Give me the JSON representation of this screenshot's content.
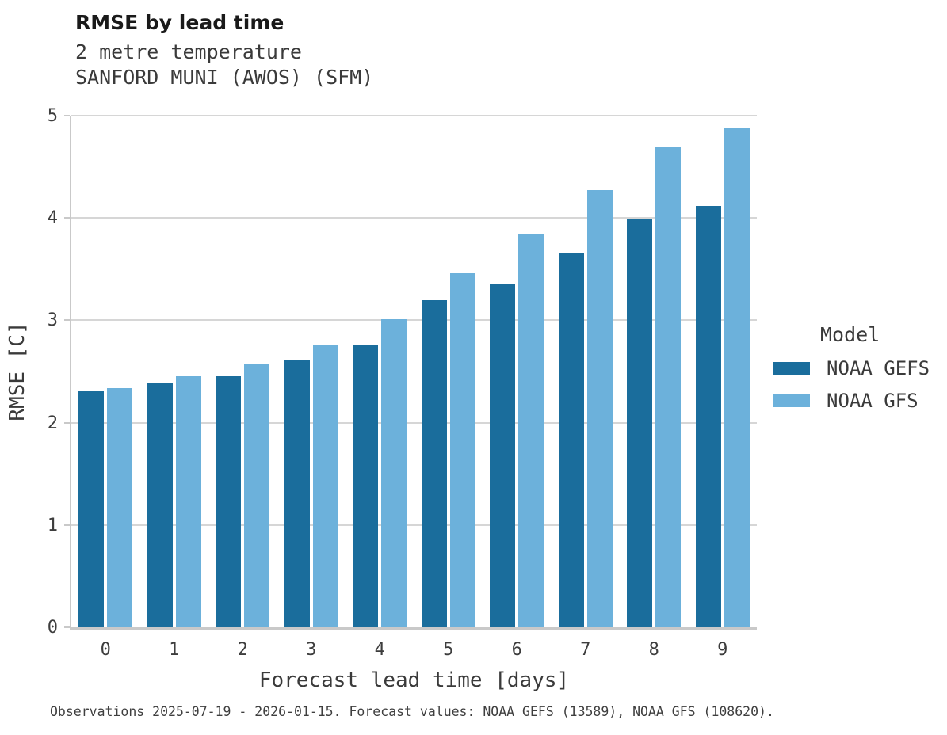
{
  "header": {
    "title": "RMSE by lead time",
    "subtitle_line1": "2 metre temperature",
    "subtitle_line2": "SANFORD MUNI (AWOS) (SFM)"
  },
  "chart_data": {
    "type": "bar",
    "title": "RMSE by lead time",
    "subtitle": [
      "2 metre temperature",
      "SANFORD MUNI (AWOS) (SFM)"
    ],
    "categories": [
      "0",
      "1",
      "2",
      "3",
      "4",
      "5",
      "6",
      "7",
      "8",
      "9"
    ],
    "series": [
      {
        "name": "NOAA GEFS",
        "color": "#1a6d9c",
        "values": [
          2.31,
          2.39,
          2.45,
          2.61,
          2.76,
          3.2,
          3.35,
          3.66,
          3.99,
          4.12
        ]
      },
      {
        "name": "NOAA GFS",
        "color": "#6cb1db",
        "values": [
          2.34,
          2.45,
          2.58,
          2.76,
          3.01,
          3.46,
          3.85,
          4.27,
          4.7,
          4.88
        ]
      }
    ],
    "xlabel": "Forecast lead time [days]",
    "ylabel": "RMSE [C]",
    "ylim": [
      0,
      5
    ],
    "yticks": [
      0,
      1,
      2,
      3,
      4,
      5
    ],
    "grid": "horizontal",
    "gridline_color": "#d6d6d6",
    "spine_color": "#c9c9c9",
    "legend_title": "Model",
    "legend_position": "right"
  },
  "footer": {
    "caption": "Observations 2025-07-19 - 2026-01-15. Forecast values: NOAA GEFS (13589), NOAA GFS (108620)."
  }
}
